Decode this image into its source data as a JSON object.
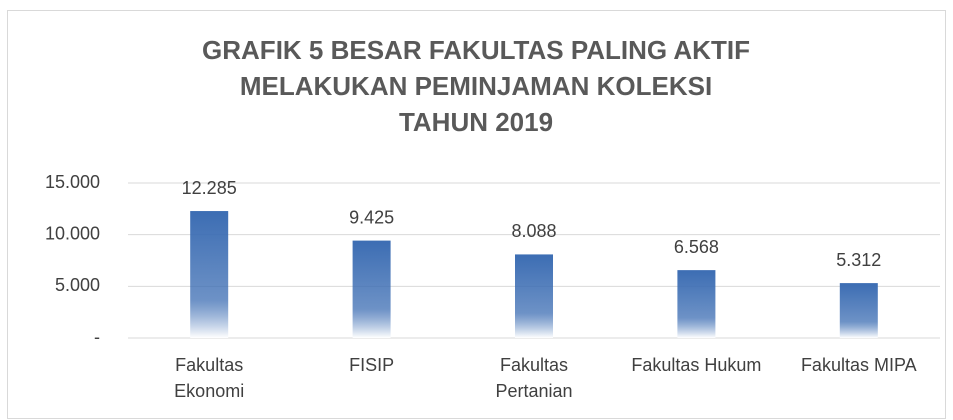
{
  "chart_data": {
    "type": "bar",
    "title": [
      "GRAFIK 5 BESAR FAKULTAS PALING AKTIF",
      "MELAKUKAN PEMINJAMAN KOLEKSI",
      "TAHUN 2019"
    ],
    "categories": [
      [
        "Fakultas",
        "Ekonomi"
      ],
      [
        "FISIP"
      ],
      [
        "Fakultas",
        "Pertanian"
      ],
      [
        "Fakultas Hukum"
      ],
      [
        "Fakultas MIPA"
      ]
    ],
    "values": [
      12285,
      9425,
      8088,
      6568,
      5312
    ],
    "value_labels": [
      "12.285",
      "9.425",
      "8.088",
      "6.568",
      "5.312"
    ],
    "color": "#3c6db3",
    "ylim": [
      0,
      15000
    ],
    "yticks": [
      {
        "value": 0,
        "label": "-"
      },
      {
        "value": 5000,
        "label": "5.000"
      },
      {
        "value": 10000,
        "label": "10.000"
      },
      {
        "value": 15000,
        "label": "15.000"
      }
    ],
    "grid": true
  }
}
